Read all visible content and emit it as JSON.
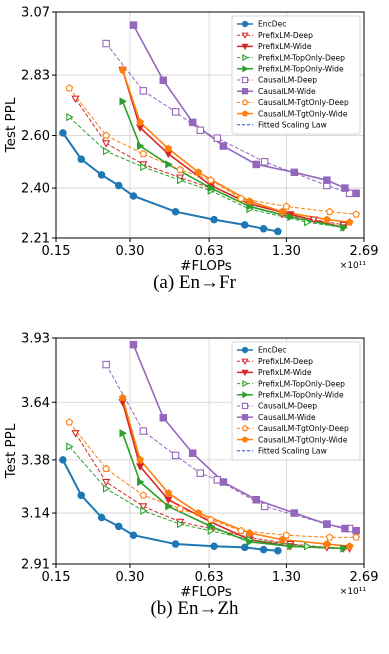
{
  "chart_data": [
    {
      "type": "line",
      "caption": "(a)  En→Fr",
      "xlabel": "#FLOPs",
      "ylabel": "Test PPL",
      "x_scale": "log",
      "x_exponent_label": "×10¹¹",
      "xlim": [
        0.15,
        2.69
      ],
      "ylim": [
        2.21,
        3.07
      ],
      "xticks": [
        0.15,
        0.3,
        0.63,
        1.3,
        2.69
      ],
      "xtick_labels": [
        "0.15",
        "0.30",
        "0.63",
        "1.30",
        "2.69"
      ],
      "yticks": [
        2.21,
        2.4,
        2.6,
        2.83,
        3.07
      ],
      "ytick_labels": [
        "2.21",
        "2.40",
        "2.60",
        "2.83",
        "3.07"
      ],
      "grid": true,
      "legend_position": "top-right",
      "series": [
        {
          "name": "EncDec",
          "color": "#1f77b4",
          "marker": "circle",
          "filled": true,
          "dashed": false,
          "x": [
            0.16,
            0.19,
            0.23,
            0.27,
            0.31,
            0.46,
            0.66,
            0.88,
            1.05,
            1.2
          ],
          "y": [
            2.61,
            2.51,
            2.45,
            2.41,
            2.37,
            2.31,
            2.28,
            2.26,
            2.245,
            2.235
          ]
        },
        {
          "name": "PrefixLM-Deep",
          "color": "#d62728",
          "marker": "triangle-down",
          "filled": false,
          "dashed": true,
          "x": [
            0.18,
            0.24,
            0.34,
            0.48,
            0.64,
            0.92,
            1.25,
            1.68,
            2.22
          ],
          "y": [
            2.74,
            2.57,
            2.49,
            2.44,
            2.4,
            2.33,
            2.3,
            2.28,
            2.26
          ]
        },
        {
          "name": "PrefixLM-Wide",
          "color": "#d62728",
          "marker": "triangle-down",
          "filled": true,
          "dashed": false,
          "x": [
            0.28,
            0.33,
            0.43,
            0.64,
            0.92,
            1.35,
            2.22
          ],
          "y": [
            2.85,
            2.63,
            2.53,
            2.41,
            2.34,
            2.3,
            2.25
          ]
        },
        {
          "name": "PrefixLM-TopOnly-Deep",
          "color": "#2ca02c",
          "marker": "triangle-right",
          "filled": false,
          "dashed": true,
          "x": [
            0.17,
            0.24,
            0.34,
            0.48,
            0.64,
            0.92,
            1.58,
            2.22
          ],
          "y": [
            2.67,
            2.54,
            2.48,
            2.43,
            2.39,
            2.32,
            2.27,
            2.25
          ]
        },
        {
          "name": "PrefixLM-TopOnly-Wide",
          "color": "#2ca02c",
          "marker": "triangle-right",
          "filled": true,
          "dashed": false,
          "x": [
            0.28,
            0.33,
            0.43,
            0.64,
            0.92,
            1.35,
            2.22
          ],
          "y": [
            2.73,
            2.56,
            2.49,
            2.4,
            2.33,
            2.29,
            2.25
          ]
        },
        {
          "name": "CausalLM-Deep",
          "color": "#9467bd",
          "marker": "square",
          "filled": false,
          "dashed": true,
          "x": [
            0.24,
            0.34,
            0.46,
            0.58,
            0.68,
            1.06,
            1.9,
            2.35
          ],
          "y": [
            2.95,
            2.77,
            2.69,
            2.62,
            2.59,
            2.5,
            2.41,
            2.38
          ]
        },
        {
          "name": "CausalLM-Wide",
          "color": "#9467bd",
          "marker": "square",
          "filled": true,
          "dashed": false,
          "x": [
            0.31,
            0.41,
            0.54,
            0.72,
            0.98,
            1.4,
            1.9,
            2.25,
            2.5
          ],
          "y": [
            3.02,
            2.81,
            2.65,
            2.56,
            2.49,
            2.46,
            2.43,
            2.4,
            2.38
          ]
        },
        {
          "name": "CausalLM-TgtOnly-Deep",
          "color": "#ff7f0e",
          "marker": "pentagon",
          "filled": false,
          "dashed": true,
          "x": [
            0.17,
            0.24,
            0.34,
            0.48,
            0.64,
            0.85,
            1.3,
            1.95,
            2.5
          ],
          "y": [
            2.78,
            2.6,
            2.53,
            2.47,
            2.43,
            2.36,
            2.33,
            2.31,
            2.3
          ]
        },
        {
          "name": "CausalLM-TgtOnly-Wide",
          "color": "#ff7f0e",
          "marker": "pentagon",
          "filled": true,
          "dashed": false,
          "x": [
            0.28,
            0.33,
            0.43,
            0.57,
            0.92,
            1.25,
            1.9,
            2.35
          ],
          "y": [
            2.85,
            2.65,
            2.55,
            2.46,
            2.35,
            2.31,
            2.28,
            2.27
          ]
        },
        {
          "name": "Fitted Scaling Law",
          "color": "#1f4ed8",
          "marker": "none",
          "filled": false,
          "dashed": true,
          "legend_only": true,
          "x": [],
          "y": []
        }
      ]
    },
    {
      "type": "line",
      "caption": "(b)  En→Zh",
      "xlabel": "#FLOPs",
      "ylabel": "Test PPL",
      "x_scale": "log",
      "x_exponent_label": "×10¹¹",
      "xlim": [
        0.15,
        2.69
      ],
      "ylim": [
        2.91,
        3.93
      ],
      "xticks": [
        0.15,
        0.3,
        0.63,
        1.3,
        2.69
      ],
      "xtick_labels": [
        "0.15",
        "0.30",
        "0.63",
        "1.30",
        "2.69"
      ],
      "yticks": [
        2.91,
        3.14,
        3.38,
        3.64,
        3.93
      ],
      "ytick_labels": [
        "2.91",
        "3.14",
        "3.38",
        "3.64",
        "3.93"
      ],
      "grid": true,
      "legend_position": "top-right",
      "series": [
        {
          "name": "EncDec",
          "color": "#1f77b4",
          "marker": "circle",
          "filled": true,
          "dashed": false,
          "x": [
            0.16,
            0.19,
            0.23,
            0.27,
            0.31,
            0.46,
            0.66,
            0.88,
            1.05,
            1.2
          ],
          "y": [
            3.38,
            3.22,
            3.12,
            3.08,
            3.04,
            3.0,
            2.99,
            2.985,
            2.975,
            2.97
          ]
        },
        {
          "name": "PrefixLM-Deep",
          "color": "#d62728",
          "marker": "triangle-down",
          "filled": false,
          "dashed": true,
          "x": [
            0.18,
            0.24,
            0.34,
            0.48,
            0.64,
            0.92,
            1.35,
            1.9,
            2.35
          ],
          "y": [
            3.5,
            3.28,
            3.17,
            3.1,
            3.07,
            3.03,
            3.0,
            2.985,
            2.98
          ]
        },
        {
          "name": "PrefixLM-Wide",
          "color": "#d62728",
          "marker": "triangle-down",
          "filled": true,
          "dashed": false,
          "x": [
            0.28,
            0.33,
            0.43,
            0.64,
            0.92,
            1.35,
            2.22
          ],
          "y": [
            3.64,
            3.35,
            3.2,
            3.1,
            3.02,
            2.99,
            2.98
          ]
        },
        {
          "name": "PrefixLM-TopOnly-Deep",
          "color": "#2ca02c",
          "marker": "triangle-right",
          "filled": false,
          "dashed": true,
          "x": [
            0.17,
            0.24,
            0.34,
            0.48,
            0.64,
            0.92,
            1.58,
            2.22
          ],
          "y": [
            3.44,
            3.25,
            3.15,
            3.09,
            3.06,
            3.02,
            2.99,
            2.98
          ]
        },
        {
          "name": "PrefixLM-TopOnly-Wide",
          "color": "#2ca02c",
          "marker": "triangle-right",
          "filled": true,
          "dashed": false,
          "x": [
            0.28,
            0.33,
            0.43,
            0.64,
            0.92,
            1.35,
            2.22
          ],
          "y": [
            3.5,
            3.28,
            3.17,
            3.08,
            3.01,
            2.99,
            2.98
          ]
        },
        {
          "name": "CausalLM-Deep",
          "color": "#9467bd",
          "marker": "square",
          "filled": false,
          "dashed": true,
          "x": [
            0.24,
            0.34,
            0.46,
            0.58,
            0.68,
            1.06,
            1.9,
            2.35
          ],
          "y": [
            3.81,
            3.51,
            3.4,
            3.32,
            3.29,
            3.17,
            3.09,
            3.07
          ]
        },
        {
          "name": "CausalLM-Wide",
          "color": "#9467bd",
          "marker": "square",
          "filled": true,
          "dashed": false,
          "x": [
            0.31,
            0.41,
            0.54,
            0.72,
            0.98,
            1.4,
            1.9,
            2.25,
            2.5
          ],
          "y": [
            3.9,
            3.57,
            3.41,
            3.28,
            3.2,
            3.14,
            3.09,
            3.07,
            3.06
          ]
        },
        {
          "name": "CausalLM-TgtOnly-Deep",
          "color": "#ff7f0e",
          "marker": "pentagon",
          "filled": false,
          "dashed": true,
          "x": [
            0.17,
            0.24,
            0.34,
            0.48,
            0.64,
            0.85,
            1.3,
            1.95,
            2.5
          ],
          "y": [
            3.55,
            3.34,
            3.22,
            3.16,
            3.11,
            3.06,
            3.04,
            3.03,
            3.03
          ]
        },
        {
          "name": "CausalLM-TgtOnly-Wide",
          "color": "#ff7f0e",
          "marker": "pentagon",
          "filled": true,
          "dashed": false,
          "x": [
            0.28,
            0.33,
            0.43,
            0.57,
            0.92,
            1.25,
            1.9,
            2.35
          ],
          "y": [
            3.66,
            3.38,
            3.23,
            3.14,
            3.05,
            3.02,
            3.0,
            2.99
          ]
        },
        {
          "name": "Fitted Scaling Law",
          "color": "#1f4ed8",
          "marker": "none",
          "filled": false,
          "dashed": true,
          "legend_only": true,
          "x": [],
          "y": []
        }
      ]
    }
  ]
}
